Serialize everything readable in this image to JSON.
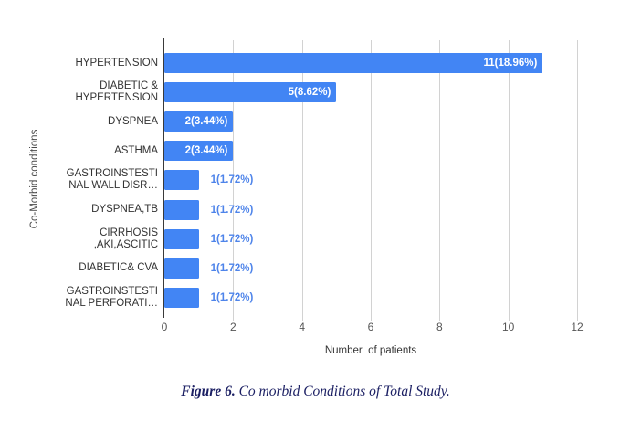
{
  "chart_data": {
    "type": "bar",
    "orientation": "horizontal",
    "title": "",
    "xlabel": "Number  of patients",
    "ylabel": "Co-Morbid conditions",
    "xlim": [
      0,
      12
    ],
    "xticks": [
      0,
      2,
      4,
      6,
      8,
      10,
      12
    ],
    "grid": "vertical gridlines on",
    "bar_color": "#4285f4",
    "inside_label_color": "#ffffff",
    "outside_label_color": "#4e84ea",
    "points": [
      {
        "category_lines": [
          "HYPERTENSION"
        ],
        "value": 11,
        "label": "11(18.96%)",
        "label_position": "inside"
      },
      {
        "category_lines": [
          "DIABETIC &",
          "HYPERTENSION"
        ],
        "value": 5,
        "label": "5(8.62%)",
        "label_position": "inside"
      },
      {
        "category_lines": [
          "DYSPNEA"
        ],
        "value": 2,
        "label": "2(3.44%)",
        "label_position": "inside"
      },
      {
        "category_lines": [
          "ASTHMA"
        ],
        "value": 2,
        "label": "2(3.44%)",
        "label_position": "inside"
      },
      {
        "category_lines": [
          "GASTROINSTESTI",
          "NAL WALL DISR…"
        ],
        "value": 1,
        "label": "1(1.72%)",
        "label_position": "outside"
      },
      {
        "category_lines": [
          "DYSPNEA,TB"
        ],
        "value": 1,
        "label": "1(1.72%)",
        "label_position": "outside"
      },
      {
        "category_lines": [
          "CIRRHOSIS",
          ",AKI,ASCITIC"
        ],
        "value": 1,
        "label": "1(1.72%)",
        "label_position": "outside"
      },
      {
        "category_lines": [
          "DIABETIC& CVA"
        ],
        "value": 1,
        "label": "1(1.72%)",
        "label_position": "outside"
      },
      {
        "category_lines": [
          "GASTROINSTESTI",
          "NAL PERFORATI…"
        ],
        "value": 1,
        "label": "1(1.72%)",
        "label_position": "outside"
      }
    ]
  },
  "caption": {
    "figure_label": "Figure 6.",
    "text": " Co morbid Conditions of Total Study."
  }
}
